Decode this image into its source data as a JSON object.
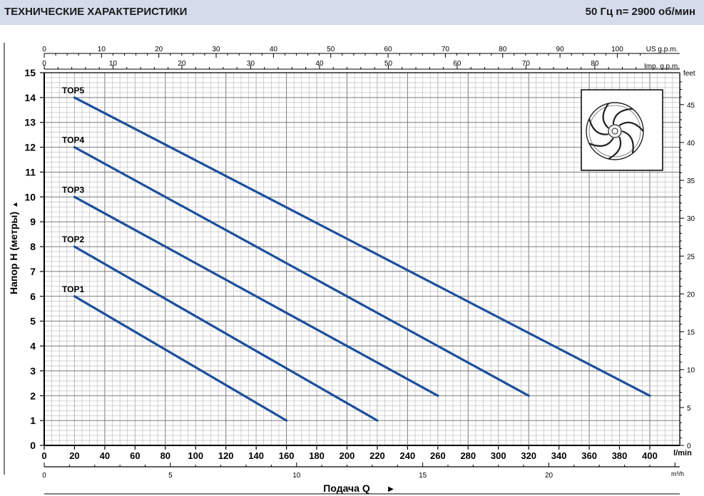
{
  "header": {
    "title": "ТЕХНИЧЕСКИЕ ХАРАКТЕРИСТИКИ",
    "spec": "50 Гц    n= 2900  об/мин"
  },
  "colors": {
    "header_bg": "#d4dcec",
    "curve": "#1c4f9c",
    "grid_minor": "#b4b4b4",
    "grid_major": "#7a7a7a",
    "axis": "#000000"
  },
  "chart_data": {
    "type": "line",
    "ylabel": "Напор H (метры)",
    "ylabel_arrow": "▲",
    "xlabel": "Подача Q",
    "xlabel_arrow": "▶",
    "x_unit": "l/min",
    "y_right_unit": "feet",
    "x2_unit": "m³/h",
    "top_unit_us": "US g.p.m.",
    "top_unit_imp": "Imp. g.p.m.",
    "xlim": [
      0,
      420
    ],
    "ylim": [
      0,
      15
    ],
    "grid": true,
    "x_ticks": [
      0,
      20,
      40,
      60,
      80,
      100,
      120,
      140,
      160,
      180,
      200,
      220,
      240,
      260,
      280,
      300,
      320,
      340,
      360,
      380,
      400
    ],
    "y_ticks": [
      0,
      1,
      2,
      3,
      4,
      5,
      6,
      7,
      8,
      9,
      10,
      11,
      12,
      13,
      14,
      15
    ],
    "feet_ticks": [
      0,
      5,
      10,
      15,
      20,
      25,
      30,
      35,
      40,
      45
    ],
    "m3h_ticks": [
      0,
      5,
      10,
      15,
      20
    ],
    "us_gpm_ticks": [
      0,
      10,
      20,
      30,
      40,
      50,
      60,
      70,
      80,
      90,
      100
    ],
    "imp_gpm_ticks": [
      0,
      10,
      20,
      30,
      40,
      50,
      60,
      70,
      80
    ],
    "series": [
      {
        "name": "TOP1",
        "x": [
          20,
          160
        ],
        "y": [
          6,
          1
        ]
      },
      {
        "name": "TOP2",
        "x": [
          20,
          220
        ],
        "y": [
          8,
          1
        ]
      },
      {
        "name": "TOP3",
        "x": [
          20,
          260
        ],
        "y": [
          10,
          2
        ]
      },
      {
        "name": "TOP4",
        "x": [
          20,
          320
        ],
        "y": [
          12,
          2
        ]
      },
      {
        "name": "TOP5",
        "x": [
          20,
          400
        ],
        "y": [
          14,
          2
        ]
      }
    ]
  }
}
